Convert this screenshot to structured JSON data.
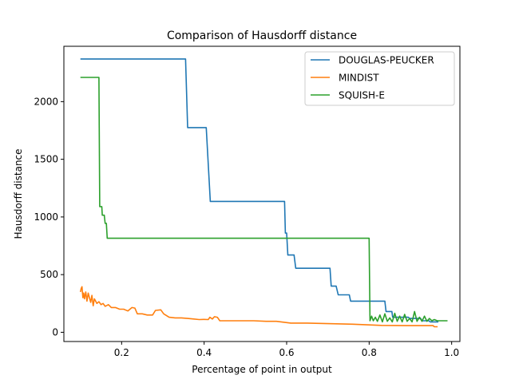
{
  "chart_data": {
    "type": "line",
    "title": "Comparison of Hausdorff distance",
    "xlabel": "Percentage of point in output",
    "ylabel": "Hausdorff distance",
    "xlim": [
      0.06,
      1.02
    ],
    "ylim": [
      -80,
      2480
    ],
    "xticks": [
      {
        "value": 0.2,
        "label": "0.2"
      },
      {
        "value": 0.4,
        "label": "0.4"
      },
      {
        "value": 0.6,
        "label": "0.6"
      },
      {
        "value": 0.8,
        "label": "0.8"
      },
      {
        "value": 1.0,
        "label": "1.0"
      }
    ],
    "yticks": [
      {
        "value": 0,
        "label": "0"
      },
      {
        "value": 500,
        "label": "500"
      },
      {
        "value": 1000,
        "label": "1000"
      },
      {
        "value": 1500,
        "label": "1500"
      },
      {
        "value": 2000,
        "label": "2000"
      }
    ],
    "grid": false,
    "legend_position": "top-right",
    "series": [
      {
        "name": "DOUGLAS-PEUCKER",
        "color": "#1f77b4",
        "points": [
          [
            0.1,
            2370
          ],
          [
            0.355,
            2370
          ],
          [
            0.36,
            1775
          ],
          [
            0.405,
            1775
          ],
          [
            0.415,
            1135
          ],
          [
            0.595,
            1135
          ],
          [
            0.597,
            860
          ],
          [
            0.6,
            860
          ],
          [
            0.603,
            670
          ],
          [
            0.618,
            670
          ],
          [
            0.622,
            555
          ],
          [
            0.705,
            555
          ],
          [
            0.708,
            400
          ],
          [
            0.72,
            400
          ],
          [
            0.725,
            325
          ],
          [
            0.752,
            325
          ],
          [
            0.755,
            270
          ],
          [
            0.838,
            270
          ],
          [
            0.841,
            180
          ],
          [
            0.855,
            180
          ],
          [
            0.857,
            130
          ],
          [
            0.895,
            130
          ],
          [
            0.898,
            120
          ],
          [
            0.925,
            120
          ],
          [
            0.928,
            100
          ],
          [
            0.945,
            100
          ],
          [
            0.948,
            90
          ],
          [
            0.968,
            90
          ]
        ]
      },
      {
        "name": "MINDIST",
        "color": "#ff7f0e",
        "points": [
          [
            0.1,
            350
          ],
          [
            0.102,
            380
          ],
          [
            0.104,
            395
          ],
          [
            0.106,
            300
          ],
          [
            0.108,
            340
          ],
          [
            0.11,
            290
          ],
          [
            0.113,
            350
          ],
          [
            0.116,
            270
          ],
          [
            0.119,
            340
          ],
          [
            0.122,
            300
          ],
          [
            0.125,
            260
          ],
          [
            0.128,
            320
          ],
          [
            0.131,
            230
          ],
          [
            0.134,
            290
          ],
          [
            0.137,
            270
          ],
          [
            0.14,
            250
          ],
          [
            0.145,
            265
          ],
          [
            0.15,
            240
          ],
          [
            0.155,
            250
          ],
          [
            0.16,
            225
          ],
          [
            0.168,
            240
          ],
          [
            0.175,
            215
          ],
          [
            0.185,
            215
          ],
          [
            0.195,
            200
          ],
          [
            0.205,
            200
          ],
          [
            0.215,
            185
          ],
          [
            0.225,
            215
          ],
          [
            0.232,
            210
          ],
          [
            0.238,
            160
          ],
          [
            0.25,
            160
          ],
          [
            0.262,
            150
          ],
          [
            0.275,
            150
          ],
          [
            0.282,
            190
          ],
          [
            0.295,
            195
          ],
          [
            0.302,
            160
          ],
          [
            0.315,
            130
          ],
          [
            0.33,
            125
          ],
          [
            0.345,
            125
          ],
          [
            0.36,
            120
          ],
          [
            0.375,
            115
          ],
          [
            0.388,
            110
          ],
          [
            0.4,
            112
          ],
          [
            0.41,
            110
          ],
          [
            0.414,
            130
          ],
          [
            0.42,
            115
          ],
          [
            0.425,
            135
          ],
          [
            0.432,
            130
          ],
          [
            0.438,
            100
          ],
          [
            0.48,
            100
          ],
          [
            0.52,
            100
          ],
          [
            0.55,
            95
          ],
          [
            0.575,
            95
          ],
          [
            0.61,
            80
          ],
          [
            0.65,
            80
          ],
          [
            0.7,
            75
          ],
          [
            0.76,
            70
          ],
          [
            0.83,
            60
          ],
          [
            0.9,
            58
          ],
          [
            0.955,
            58
          ],
          [
            0.958,
            48
          ],
          [
            0.966,
            48
          ]
        ]
      },
      {
        "name": "SQUISH-E",
        "color": "#2ca02c",
        "points": [
          [
            0.1,
            2210
          ],
          [
            0.145,
            2210
          ],
          [
            0.147,
            1090
          ],
          [
            0.152,
            1090
          ],
          [
            0.153,
            1015
          ],
          [
            0.158,
            1015
          ],
          [
            0.16,
            945
          ],
          [
            0.163,
            945
          ],
          [
            0.165,
            815
          ],
          [
            0.8,
            815
          ],
          [
            0.802,
            100
          ],
          [
            0.806,
            140
          ],
          [
            0.81,
            100
          ],
          [
            0.815,
            130
          ],
          [
            0.82,
            95
          ],
          [
            0.826,
            150
          ],
          [
            0.832,
            90
          ],
          [
            0.838,
            160
          ],
          [
            0.844,
            95
          ],
          [
            0.85,
            125
          ],
          [
            0.856,
            90
          ],
          [
            0.862,
            165
          ],
          [
            0.868,
            95
          ],
          [
            0.874,
            140
          ],
          [
            0.88,
            90
          ],
          [
            0.886,
            155
          ],
          [
            0.892,
            95
          ],
          [
            0.898,
            120
          ],
          [
            0.904,
            90
          ],
          [
            0.91,
            180
          ],
          [
            0.916,
            95
          ],
          [
            0.922,
            130
          ],
          [
            0.928,
            95
          ],
          [
            0.934,
            140
          ],
          [
            0.94,
            95
          ],
          [
            0.946,
            120
          ],
          [
            0.952,
            100
          ],
          [
            0.958,
            110
          ],
          [
            0.965,
            100
          ],
          [
            0.99,
            100
          ]
        ]
      }
    ]
  }
}
